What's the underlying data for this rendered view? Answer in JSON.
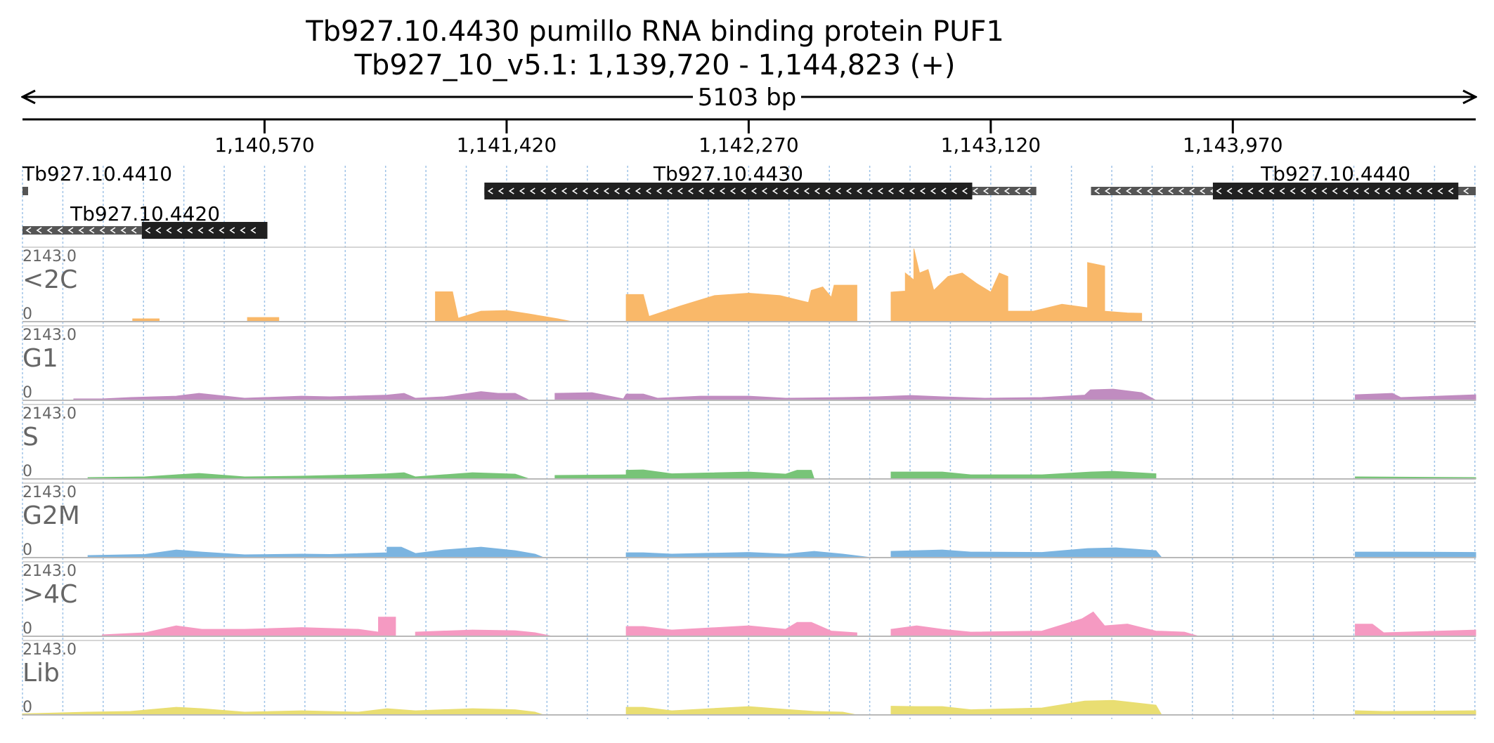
{
  "header": {
    "title": "Tb927.10.4430  pumillo RNA binding protein PUF1",
    "location": "Tb927_10_v5.1: 1,139,720 - 1,144,823 (+)",
    "span_label": "5103 bp"
  },
  "region": {
    "start": 1139720,
    "end": 1144823
  },
  "ruler": {
    "ticks": [
      {
        "pos": 1140570,
        "label": "1,140,570"
      },
      {
        "pos": 1141420,
        "label": "1,141,420"
      },
      {
        "pos": 1142270,
        "label": "1,142,270"
      },
      {
        "pos": 1143120,
        "label": "1,143,120"
      },
      {
        "pos": 1143970,
        "label": "1,143,970"
      }
    ]
  },
  "genes": [
    {
      "name": "Tb927.10.4410",
      "strand": "-",
      "row": 0,
      "utr": [
        1139720,
        1139737
      ],
      "cds": null
    },
    {
      "name": "Tb927.10.4420",
      "strand": "-",
      "row": 1,
      "utr": [
        1139720,
        1140139
      ],
      "cds": [
        1140139,
        1140580
      ]
    },
    {
      "name": "Tb927.10.4430",
      "strand": "-",
      "row": 0,
      "utr": [
        1141342,
        1143280
      ],
      "cds": [
        1141342,
        1143055
      ]
    },
    {
      "name": "Tb927.10.4440",
      "strand": "-",
      "row": 0,
      "utr": [
        1143472,
        1144823
      ],
      "cds": [
        1143900,
        1144762
      ]
    }
  ],
  "tracks": [
    {
      "label": "<2C",
      "max": "2143.0",
      "min": "0",
      "color": "#f9b869"
    },
    {
      "label": "G1",
      "max": "2143.0",
      "min": "0",
      "color": "#c08cc0"
    },
    {
      "label": "S",
      "max": "2143.0",
      "min": "0",
      "color": "#78c478"
    },
    {
      "label": "G2M",
      "max": "2143.0",
      "min": "0",
      "color": "#7bb4e0"
    },
    {
      "label": ">4C",
      "max": "2143.0",
      "min": "0",
      "color": "#f59ac2"
    },
    {
      "label": "Lib",
      "max": "2143.0",
      "min": "0",
      "color": "#e9de72"
    }
  ],
  "chart_data": {
    "type": "area",
    "x_unit": "bp",
    "y_unit": "coverage",
    "ylim": [
      0,
      2143
    ],
    "series": [
      {
        "name": "<2C",
        "points": [
          [
            1140107,
            0
          ],
          [
            1140107,
            80
          ],
          [
            1140200,
            80
          ],
          [
            1140200,
            0
          ],
          [
            1140510,
            0
          ],
          [
            1140510,
            120
          ],
          [
            1140620,
            120
          ],
          [
            1140620,
            0
          ],
          [
            1141170,
            0
          ],
          [
            1141170,
            860
          ],
          [
            1141230,
            860
          ],
          [
            1141250,
            100
          ],
          [
            1141330,
            300
          ],
          [
            1141420,
            320
          ],
          [
            1141500,
            220
          ],
          [
            1141600,
            80
          ],
          [
            1141650,
            0
          ],
          [
            1141840,
            0
          ],
          [
            1141840,
            780
          ],
          [
            1141900,
            780
          ],
          [
            1141920,
            150
          ],
          [
            1142030,
            450
          ],
          [
            1142150,
            750
          ],
          [
            1142270,
            820
          ],
          [
            1142380,
            750
          ],
          [
            1142480,
            550
          ],
          [
            1142490,
            900
          ],
          [
            1142530,
            1000
          ],
          [
            1142560,
            700
          ],
          [
            1142570,
            1050
          ],
          [
            1142650,
            1050
          ],
          [
            1142650,
            0
          ],
          [
            1142770,
            0
          ],
          [
            1142770,
            850
          ],
          [
            1142820,
            880
          ],
          [
            1142820,
            1400
          ],
          [
            1142850,
            1200
          ],
          [
            1142850,
            2100
          ],
          [
            1142870,
            1400
          ],
          [
            1142900,
            1500
          ],
          [
            1142920,
            900
          ],
          [
            1142970,
            1300
          ],
          [
            1143020,
            1400
          ],
          [
            1143070,
            1100
          ],
          [
            1143120,
            850
          ],
          [
            1143150,
            1400
          ],
          [
            1143180,
            1300
          ],
          [
            1143180,
            300
          ],
          [
            1143270,
            300
          ],
          [
            1143370,
            500
          ],
          [
            1143460,
            400
          ],
          [
            1143460,
            1700
          ],
          [
            1143520,
            1600
          ],
          [
            1143520,
            300
          ],
          [
            1143600,
            250
          ],
          [
            1143650,
            240
          ],
          [
            1143650,
            0
          ]
        ]
      },
      {
        "name": "G1",
        "points": [
          [
            1139900,
            0
          ],
          [
            1139900,
            40
          ],
          [
            1140000,
            40
          ],
          [
            1140100,
            80
          ],
          [
            1140260,
            120
          ],
          [
            1140340,
            200
          ],
          [
            1140500,
            60
          ],
          [
            1140700,
            120
          ],
          [
            1140800,
            100
          ],
          [
            1141000,
            150
          ],
          [
            1141060,
            200
          ],
          [
            1141100,
            60
          ],
          [
            1141200,
            100
          ],
          [
            1141330,
            250
          ],
          [
            1141390,
            200
          ],
          [
            1141450,
            200
          ],
          [
            1141500,
            0
          ],
          [
            1141590,
            0
          ],
          [
            1141590,
            200
          ],
          [
            1141720,
            220
          ],
          [
            1141830,
            40
          ],
          [
            1141840,
            180
          ],
          [
            1141900,
            180
          ],
          [
            1141950,
            60
          ],
          [
            1142100,
            120
          ],
          [
            1142270,
            120
          ],
          [
            1142400,
            60
          ],
          [
            1142600,
            80
          ],
          [
            1142720,
            100
          ],
          [
            1142840,
            140
          ],
          [
            1142950,
            100
          ],
          [
            1143100,
            60
          ],
          [
            1143300,
            80
          ],
          [
            1143450,
            150
          ],
          [
            1143470,
            300
          ],
          [
            1143550,
            320
          ],
          [
            1143650,
            220
          ],
          [
            1143700,
            0
          ],
          [
            1144400,
            0
          ],
          [
            1144400,
            160
          ],
          [
            1144530,
            200
          ],
          [
            1144560,
            80
          ],
          [
            1144823,
            160
          ],
          [
            1144823,
            0
          ]
        ]
      },
      {
        "name": "S",
        "points": [
          [
            1139950,
            0
          ],
          [
            1139950,
            40
          ],
          [
            1140150,
            60
          ],
          [
            1140260,
            120
          ],
          [
            1140340,
            160
          ],
          [
            1140500,
            60
          ],
          [
            1140700,
            80
          ],
          [
            1140900,
            120
          ],
          [
            1141000,
            150
          ],
          [
            1141060,
            180
          ],
          [
            1141100,
            60
          ],
          [
            1141300,
            180
          ],
          [
            1141450,
            140
          ],
          [
            1141500,
            0
          ],
          [
            1141590,
            0
          ],
          [
            1141590,
            100
          ],
          [
            1141840,
            120
          ],
          [
            1141840,
            250
          ],
          [
            1141900,
            260
          ],
          [
            1142000,
            150
          ],
          [
            1142270,
            200
          ],
          [
            1142400,
            140
          ],
          [
            1142440,
            250
          ],
          [
            1142490,
            250
          ],
          [
            1142500,
            0
          ],
          [
            1142770,
            0
          ],
          [
            1142770,
            200
          ],
          [
            1142860,
            200
          ],
          [
            1142950,
            200
          ],
          [
            1143050,
            120
          ],
          [
            1143300,
            120
          ],
          [
            1143470,
            200
          ],
          [
            1143550,
            220
          ],
          [
            1143700,
            150
          ],
          [
            1143700,
            0
          ],
          [
            1144400,
            0
          ],
          [
            1144400,
            60
          ],
          [
            1144823,
            40
          ],
          [
            1144823,
            0
          ]
        ]
      },
      {
        "name": "G2M",
        "points": [
          [
            1139950,
            0
          ],
          [
            1139950,
            60
          ],
          [
            1140150,
            90
          ],
          [
            1140260,
            220
          ],
          [
            1140350,
            160
          ],
          [
            1140500,
            80
          ],
          [
            1140700,
            100
          ],
          [
            1140800,
            90
          ],
          [
            1141000,
            140
          ],
          [
            1141000,
            300
          ],
          [
            1141050,
            300
          ],
          [
            1141100,
            120
          ],
          [
            1141200,
            220
          ],
          [
            1141330,
            300
          ],
          [
            1141450,
            200
          ],
          [
            1141520,
            100
          ],
          [
            1141550,
            0
          ],
          [
            1141840,
            0
          ],
          [
            1141840,
            140
          ],
          [
            1141900,
            140
          ],
          [
            1142000,
            100
          ],
          [
            1142270,
            150
          ],
          [
            1142400,
            100
          ],
          [
            1142500,
            180
          ],
          [
            1142600,
            100
          ],
          [
            1142700,
            0
          ],
          [
            1142770,
            0
          ],
          [
            1142770,
            180
          ],
          [
            1142860,
            200
          ],
          [
            1142950,
            220
          ],
          [
            1143050,
            160
          ],
          [
            1143300,
            150
          ],
          [
            1143460,
            260
          ],
          [
            1143560,
            280
          ],
          [
            1143700,
            200
          ],
          [
            1143720,
            0
          ],
          [
            1144400,
            0
          ],
          [
            1144400,
            160
          ],
          [
            1144520,
            160
          ],
          [
            1144823,
            150
          ],
          [
            1144823,
            0
          ]
        ]
      },
      {
        "name": ">4C",
        "points": [
          [
            1140000,
            0
          ],
          [
            1140000,
            40
          ],
          [
            1140150,
            100
          ],
          [
            1140260,
            300
          ],
          [
            1140350,
            200
          ],
          [
            1140500,
            200
          ],
          [
            1140700,
            250
          ],
          [
            1140900,
            200
          ],
          [
            1140970,
            120
          ],
          [
            1140970,
            550
          ],
          [
            1141030,
            550
          ],
          [
            1141030,
            0
          ],
          [
            1141100,
            0
          ],
          [
            1141100,
            120
          ],
          [
            1141300,
            180
          ],
          [
            1141450,
            160
          ],
          [
            1141520,
            100
          ],
          [
            1141580,
            0
          ],
          [
            1141840,
            0
          ],
          [
            1141840,
            280
          ],
          [
            1141900,
            280
          ],
          [
            1142000,
            180
          ],
          [
            1142270,
            300
          ],
          [
            1142400,
            200
          ],
          [
            1142440,
            400
          ],
          [
            1142490,
            400
          ],
          [
            1142560,
            150
          ],
          [
            1142650,
            100
          ],
          [
            1142650,
            0
          ],
          [
            1142770,
            0
          ],
          [
            1142770,
            200
          ],
          [
            1142860,
            300
          ],
          [
            1142950,
            200
          ],
          [
            1143050,
            120
          ],
          [
            1143300,
            150
          ],
          [
            1143440,
            500
          ],
          [
            1143480,
            700
          ],
          [
            1143520,
            300
          ],
          [
            1143600,
            350
          ],
          [
            1143700,
            150
          ],
          [
            1143800,
            120
          ],
          [
            1143850,
            0
          ],
          [
            1144400,
            0
          ],
          [
            1144400,
            350
          ],
          [
            1144460,
            350
          ],
          [
            1144500,
            100
          ],
          [
            1144823,
            180
          ],
          [
            1144823,
            0
          ]
        ]
      },
      {
        "name": "Lib",
        "points": [
          [
            1139720,
            0
          ],
          [
            1139720,
            30
          ],
          [
            1139950,
            80
          ],
          [
            1140100,
            100
          ],
          [
            1140260,
            220
          ],
          [
            1140350,
            180
          ],
          [
            1140500,
            80
          ],
          [
            1140700,
            120
          ],
          [
            1140900,
            80
          ],
          [
            1141000,
            180
          ],
          [
            1141100,
            120
          ],
          [
            1141300,
            180
          ],
          [
            1141450,
            150
          ],
          [
            1141520,
            80
          ],
          [
            1141550,
            0
          ],
          [
            1141840,
            0
          ],
          [
            1141840,
            220
          ],
          [
            1141900,
            220
          ],
          [
            1142000,
            120
          ],
          [
            1142270,
            240
          ],
          [
            1142400,
            160
          ],
          [
            1142500,
            100
          ],
          [
            1142600,
            80
          ],
          [
            1142650,
            0
          ],
          [
            1142770,
            0
          ],
          [
            1142770,
            250
          ],
          [
            1142860,
            240
          ],
          [
            1142950,
            240
          ],
          [
            1143050,
            150
          ],
          [
            1143300,
            200
          ],
          [
            1143450,
            400
          ],
          [
            1143550,
            420
          ],
          [
            1143700,
            280
          ],
          [
            1143720,
            0
          ],
          [
            1144400,
            0
          ],
          [
            1144400,
            120
          ],
          [
            1144500,
            100
          ],
          [
            1144823,
            120
          ],
          [
            1144823,
            0
          ]
        ]
      }
    ]
  }
}
